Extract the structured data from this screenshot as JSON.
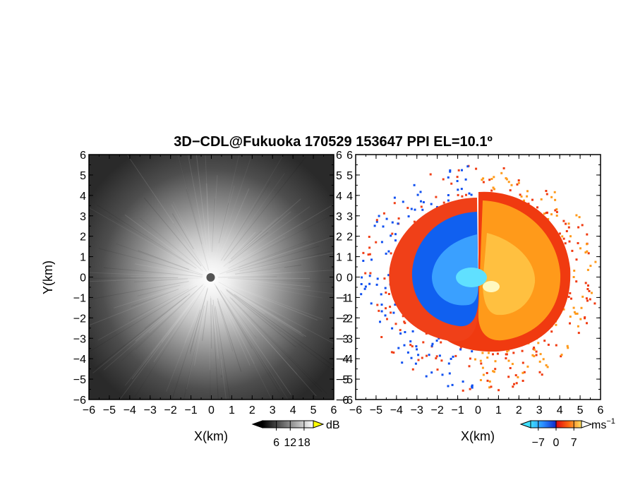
{
  "chart_data": {
    "type": "heatmap",
    "title": "3D−CDL@Fukuoka 170529 153647 PPI EL=10.1º",
    "panels": [
      {
        "name": "power",
        "xlabel": "X(km)",
        "ylabel": "Y(km)",
        "xlim": [
          -6,
          6
        ],
        "ylim": [
          -6,
          6
        ],
        "x_ticks": [
          "−6",
          "−5",
          "−4",
          "−3",
          "−2",
          "−1",
          "0",
          "1",
          "2",
          "3",
          "4",
          "5",
          "6"
        ],
        "y_ticks": [
          "6",
          "5",
          "4",
          "3",
          "2",
          "1",
          "0",
          "−1",
          "−2",
          "−3",
          "−4",
          "−5",
          "−6"
        ],
        "colorbar": {
          "unit": "dB",
          "ticks": [
            "6",
            "12",
            "18"
          ],
          "colormap": "grayscale",
          "range": [
            0,
            22
          ]
        }
      },
      {
        "name": "doppler_velocity",
        "xlabel": "X(km)",
        "xlim": [
          -6,
          6
        ],
        "ylim": [
          -6,
          6
        ],
        "x_ticks": [
          "−6",
          "−5",
          "−4",
          "−3",
          "−2",
          "−1",
          "0",
          "1",
          "2",
          "3",
          "4",
          "5",
          "6"
        ],
        "y_ticks": [
          "6",
          "5",
          "4",
          "3",
          "2",
          "1",
          "0",
          "−1",
          "−2",
          "−3",
          "−4",
          "−5",
          "−6"
        ],
        "colorbar": {
          "unit": "ms",
          "unit_exp": "−1",
          "ticks": [
            "−7",
            "0",
            "7"
          ],
          "colormap": "cyan-blue-red-yellow",
          "range": [
            -10,
            10
          ]
        }
      }
    ]
  },
  "colors": {
    "background": "#ffffff",
    "panel_dark": "#2d2d2d",
    "approaching_blue": "#1060f0",
    "receding_red": "#f03a10",
    "receding_orange": "#ff9a1a",
    "core_cyan": "#30c8ff"
  }
}
